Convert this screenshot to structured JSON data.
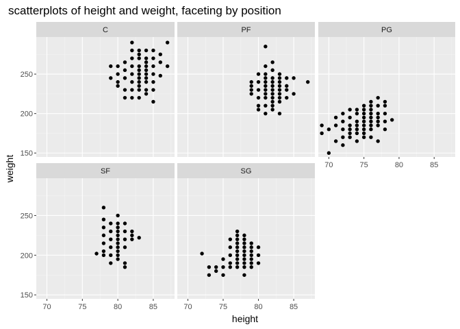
{
  "chart_data": {
    "type": "scatter",
    "title": "scatterplots of height and weight, faceting by position",
    "xlabel": "height",
    "ylabel": "weight",
    "xlim": [
      68.5,
      88
    ],
    "ylim": [
      145,
      297
    ],
    "x_ticks": [
      70,
      75,
      80,
      85
    ],
    "y_ticks": [
      150,
      200,
      250
    ],
    "grid": true,
    "point_color": "#000000",
    "panel_bg": "#ebebeb",
    "strip_bg": "#d9d9d9",
    "facets": [
      {
        "name": "C",
        "points": [
          [
            80,
            260
          ],
          [
            80,
            250
          ],
          [
            80,
            240
          ],
          [
            80,
            235
          ],
          [
            81,
            265
          ],
          [
            81,
            255
          ],
          [
            81,
            245
          ],
          [
            81,
            230
          ],
          [
            81,
            220
          ],
          [
            82,
            280
          ],
          [
            82,
            270
          ],
          [
            82,
            260
          ],
          [
            82,
            250
          ],
          [
            82,
            240
          ],
          [
            82,
            230
          ],
          [
            82,
            220
          ],
          [
            82,
            290
          ],
          [
            83,
            280
          ],
          [
            83,
            270
          ],
          [
            83,
            260
          ],
          [
            83,
            250
          ],
          [
            83,
            240
          ],
          [
            83,
            230
          ],
          [
            83,
            220
          ],
          [
            83,
            275
          ],
          [
            83,
            255
          ],
          [
            83,
            245
          ],
          [
            83,
            235
          ],
          [
            84,
            280
          ],
          [
            84,
            270
          ],
          [
            84,
            260
          ],
          [
            84,
            250
          ],
          [
            84,
            240
          ],
          [
            84,
            230
          ],
          [
            84,
            225
          ],
          [
            84,
            265
          ],
          [
            84,
            255
          ],
          [
            84,
            245
          ],
          [
            85,
            280
          ],
          [
            85,
            270
          ],
          [
            85,
            260
          ],
          [
            85,
            250
          ],
          [
            85,
            240
          ],
          [
            85,
            230
          ],
          [
            85,
            215
          ],
          [
            86,
            275
          ],
          [
            86,
            265
          ],
          [
            86,
            248
          ],
          [
            87,
            290
          ],
          [
            87,
            260
          ],
          [
            79,
            260
          ],
          [
            79,
            245
          ]
        ]
      },
      {
        "name": "PF",
        "points": [
          [
            79,
            240
          ],
          [
            79,
            235
          ],
          [
            79,
            230
          ],
          [
            79,
            225
          ],
          [
            80,
            250
          ],
          [
            80,
            240
          ],
          [
            80,
            230
          ],
          [
            80,
            220
          ],
          [
            80,
            210
          ],
          [
            80,
            205
          ],
          [
            81,
            260
          ],
          [
            81,
            250
          ],
          [
            81,
            240
          ],
          [
            81,
            230
          ],
          [
            81,
            220
          ],
          [
            81,
            210
          ],
          [
            81,
            200
          ],
          [
            81,
            285
          ],
          [
            81,
            245
          ],
          [
            81,
            235
          ],
          [
            81,
            225
          ],
          [
            82,
            265
          ],
          [
            82,
            255
          ],
          [
            82,
            245
          ],
          [
            82,
            240
          ],
          [
            82,
            235
          ],
          [
            82,
            230
          ],
          [
            82,
            225
          ],
          [
            82,
            220
          ],
          [
            82,
            215
          ],
          [
            82,
            210
          ],
          [
            82,
            205
          ],
          [
            83,
            250
          ],
          [
            83,
            245
          ],
          [
            83,
            240
          ],
          [
            83,
            235
          ],
          [
            83,
            230
          ],
          [
            83,
            225
          ],
          [
            83,
            220
          ],
          [
            83,
            215
          ],
          [
            83,
            200
          ],
          [
            84,
            245
          ],
          [
            84,
            235
          ],
          [
            84,
            230
          ],
          [
            84,
            220
          ],
          [
            85,
            245
          ],
          [
            85,
            225
          ],
          [
            87,
            240
          ]
        ]
      },
      {
        "name": "PG",
        "points": [
          [
            69,
            185
          ],
          [
            69,
            175
          ],
          [
            70,
            180
          ],
          [
            70,
            150
          ],
          [
            71,
            195
          ],
          [
            71,
            185
          ],
          [
            71,
            165
          ],
          [
            72,
            200
          ],
          [
            72,
            190
          ],
          [
            72,
            180
          ],
          [
            72,
            170
          ],
          [
            72,
            160
          ],
          [
            73,
            205
          ],
          [
            73,
            195
          ],
          [
            73,
            185
          ],
          [
            73,
            180
          ],
          [
            73,
            175
          ],
          [
            73,
            170
          ],
          [
            74,
            205
          ],
          [
            74,
            200
          ],
          [
            74,
            190
          ],
          [
            74,
            185
          ],
          [
            74,
            180
          ],
          [
            74,
            175
          ],
          [
            74,
            165
          ],
          [
            75,
            210
          ],
          [
            75,
            205
          ],
          [
            75,
            200
          ],
          [
            75,
            195
          ],
          [
            75,
            190
          ],
          [
            75,
            185
          ],
          [
            75,
            180
          ],
          [
            75,
            175
          ],
          [
            75,
            170
          ],
          [
            76,
            215
          ],
          [
            76,
            210
          ],
          [
            76,
            205
          ],
          [
            76,
            200
          ],
          [
            76,
            195
          ],
          [
            76,
            190
          ],
          [
            76,
            185
          ],
          [
            76,
            180
          ],
          [
            76,
            170
          ],
          [
            77,
            220
          ],
          [
            77,
            210
          ],
          [
            77,
            200
          ],
          [
            77,
            195
          ],
          [
            77,
            190
          ],
          [
            77,
            185
          ],
          [
            77,
            165
          ],
          [
            78,
            215
          ],
          [
            78,
            210
          ],
          [
            78,
            200
          ],
          [
            78,
            190
          ],
          [
            78,
            180
          ],
          [
            79,
            192
          ]
        ]
      },
      {
        "name": "SF",
        "points": [
          [
            77,
            202
          ],
          [
            78,
            260
          ],
          [
            78,
            245
          ],
          [
            78,
            235
          ],
          [
            78,
            225
          ],
          [
            78,
            215
          ],
          [
            78,
            205
          ],
          [
            78,
            200
          ],
          [
            79,
            240
          ],
          [
            79,
            230
          ],
          [
            79,
            220
          ],
          [
            79,
            210
          ],
          [
            79,
            200
          ],
          [
            79,
            190
          ],
          [
            80,
            250
          ],
          [
            80,
            240
          ],
          [
            80,
            235
          ],
          [
            80,
            230
          ],
          [
            80,
            225
          ],
          [
            80,
            220
          ],
          [
            80,
            215
          ],
          [
            80,
            210
          ],
          [
            80,
            205
          ],
          [
            80,
            200
          ],
          [
            80,
            195
          ],
          [
            81,
            240
          ],
          [
            81,
            230
          ],
          [
            81,
            220
          ],
          [
            81,
            210
          ],
          [
            81,
            190
          ],
          [
            81,
            185
          ],
          [
            82,
            230
          ],
          [
            82,
            225
          ],
          [
            82,
            220
          ],
          [
            83,
            222
          ]
        ]
      },
      {
        "name": "SG",
        "points": [
          [
            72,
            202
          ],
          [
            73,
            185
          ],
          [
            73,
            175
          ],
          [
            74,
            185
          ],
          [
            74,
            180
          ],
          [
            75,
            185
          ],
          [
            75,
            175
          ],
          [
            76,
            220
          ],
          [
            76,
            210
          ],
          [
            76,
            200
          ],
          [
            76,
            190
          ],
          [
            76,
            185
          ],
          [
            77,
            230
          ],
          [
            77,
            225
          ],
          [
            77,
            220
          ],
          [
            77,
            215
          ],
          [
            77,
            210
          ],
          [
            77,
            205
          ],
          [
            77,
            200
          ],
          [
            77,
            195
          ],
          [
            77,
            190
          ],
          [
            77,
            185
          ],
          [
            78,
            225
          ],
          [
            78,
            220
          ],
          [
            78,
            215
          ],
          [
            78,
            210
          ],
          [
            78,
            205
          ],
          [
            78,
            200
          ],
          [
            78,
            195
          ],
          [
            78,
            190
          ],
          [
            78,
            185
          ],
          [
            78,
            175
          ],
          [
            79,
            215
          ],
          [
            79,
            210
          ],
          [
            79,
            205
          ],
          [
            79,
            200
          ],
          [
            79,
            195
          ],
          [
            79,
            190
          ],
          [
            79,
            185
          ],
          [
            80,
            210
          ],
          [
            80,
            200
          ],
          [
            80,
            190
          ],
          [
            75,
            195
          ]
        ]
      }
    ]
  }
}
